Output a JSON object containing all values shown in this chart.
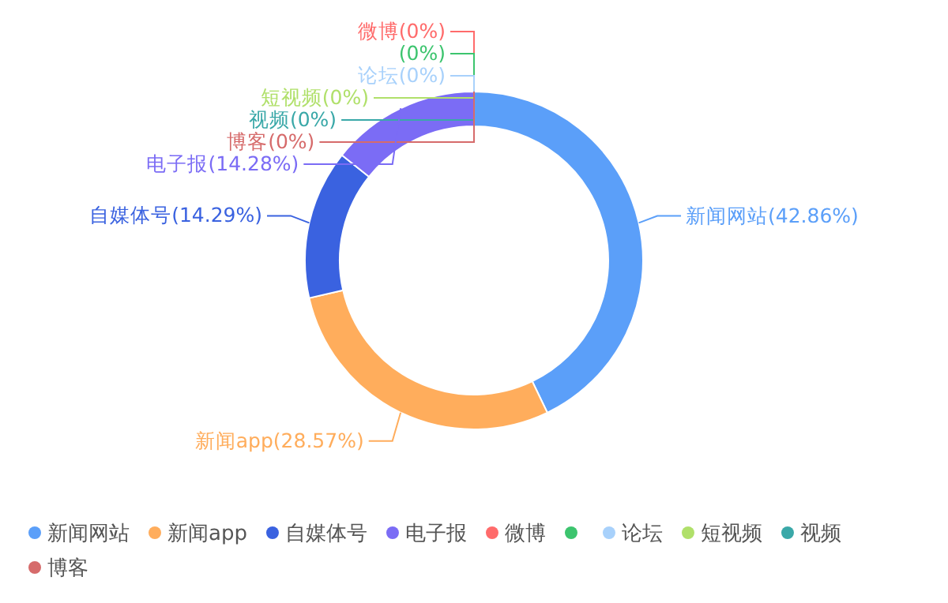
{
  "chart_data": {
    "type": "donut",
    "categories": [
      "新闻网站",
      "新闻app",
      "自媒体号",
      "电子报",
      "微博",
      null,
      "论坛",
      "短视频",
      "视频",
      "博客"
    ],
    "values": [
      42.86,
      28.57,
      14.29,
      14.28,
      0,
      0,
      0,
      0,
      0,
      0
    ],
    "colors": [
      "#5b9ff9",
      "#ffad5c",
      "#3a62e0",
      "#7b6cf5",
      "#ff6b6b",
      "#3cc46e",
      "#a8d1fb",
      "#b0e06a",
      "#3aa8a8",
      "#d66b6b"
    ],
    "value_labels": [
      "(42.86%)",
      "(28.57%)",
      "(14.29%)",
      "(14.28%)",
      "(0%)",
      "(0%)",
      "(0%)",
      "(0%)",
      "(0%)",
      "(0%)"
    ],
    "legend": "bottom"
  }
}
